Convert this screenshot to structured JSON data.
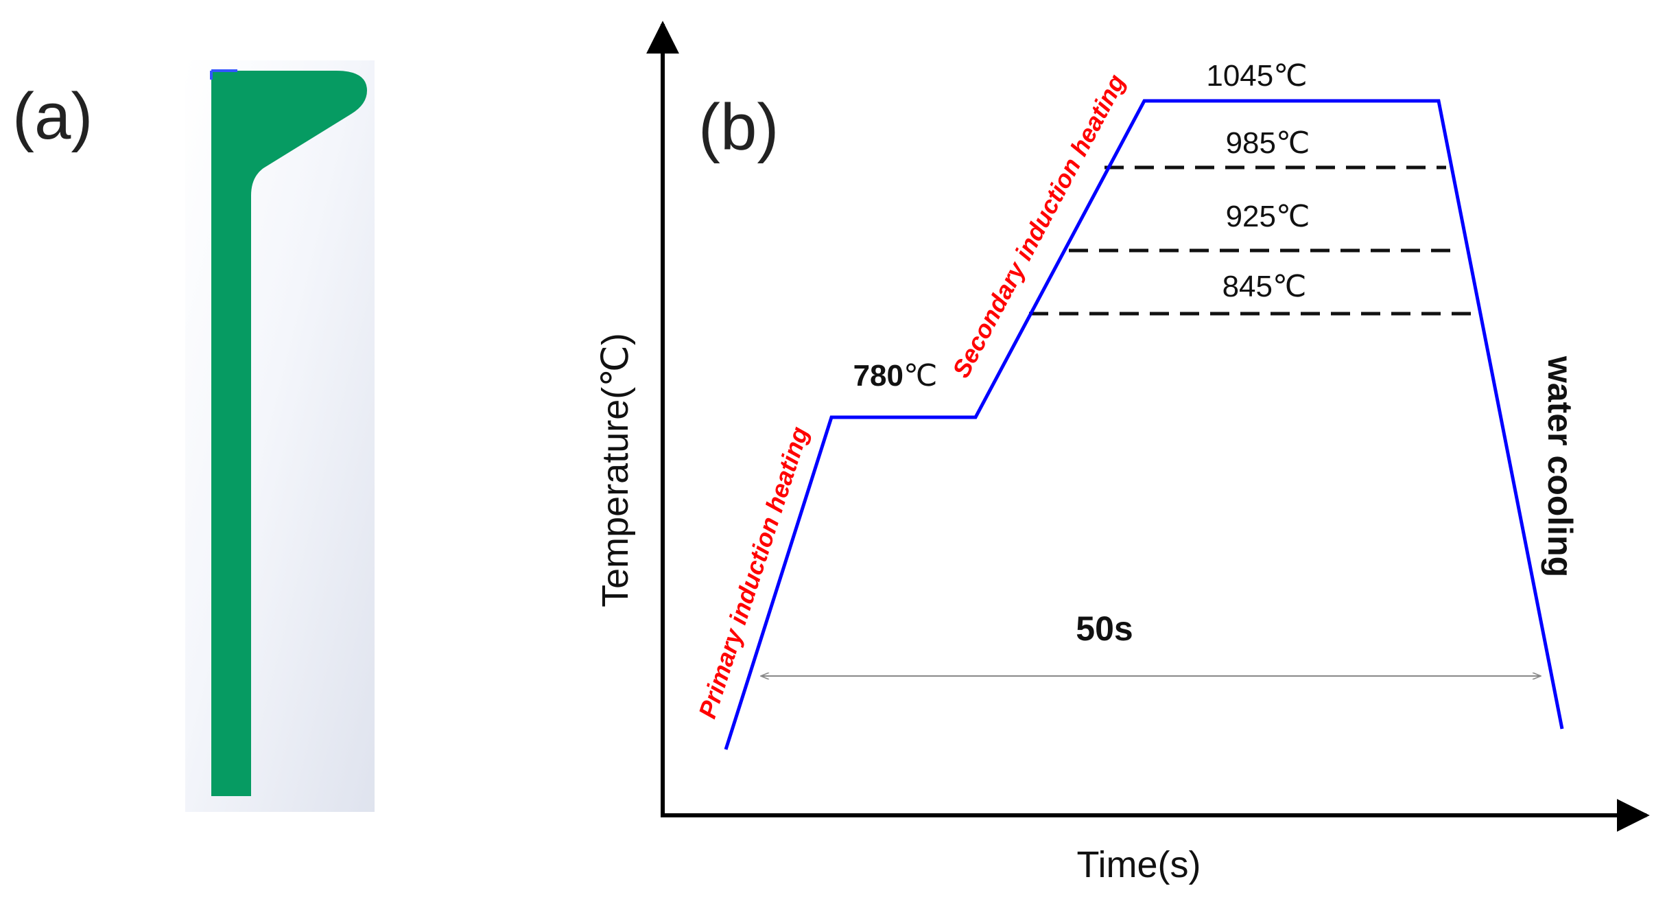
{
  "panel_a": {
    "label": "(a)",
    "colors": {
      "profile": "#069B62",
      "background": "#E6E9F2"
    }
  },
  "panel_b": {
    "label": "(b)",
    "axis": {
      "x_label": "Time(s)",
      "y_label": "Temperature(℃)"
    },
    "stage_labels": {
      "primary": "Primary induction heating",
      "secondary": "Secondary induction heating",
      "cooling": "water cooling"
    },
    "hold_temperature": {
      "value": "780",
      "unit": "℃"
    },
    "temperature_levels": [
      {
        "value": "1045",
        "unit": "℃",
        "style": "solid"
      },
      {
        "value": "985",
        "unit": "℃",
        "style": "dashed"
      },
      {
        "value": "925",
        "unit": "℃",
        "style": "dashed"
      },
      {
        "value": "845",
        "unit": "℃",
        "style": "dashed"
      }
    ],
    "duration": "50s",
    "colors": {
      "curve": "#0000FF",
      "stage_text": "#FF0000",
      "dashed": "#111111",
      "span_arrow": "#888888"
    }
  }
}
